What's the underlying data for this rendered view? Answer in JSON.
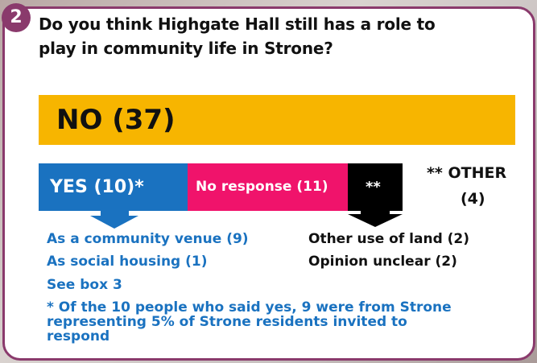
{
  "badge": "2",
  "question": [
    "Do you think Highgate Hall still has a role to",
    "play in community life in Strone?"
  ],
  "bars": {
    "no": "NO (37)",
    "yes": "YES (10)*",
    "no_response": "No response (11)",
    "other_marker": "**"
  },
  "other_label": [
    "** OTHER",
    "(4)"
  ],
  "yes_items": [
    "As a community venue (9)",
    "As social housing (1)",
    "See box 3"
  ],
  "other_items": [
    "Other use of land (2)",
    "Opinion unclear (2)"
  ],
  "footnote": [
    "* Of the 10 people who said yes, 9 were from Strone",
    "representing 5% of Strone residents invited to",
    "respond"
  ]
}
